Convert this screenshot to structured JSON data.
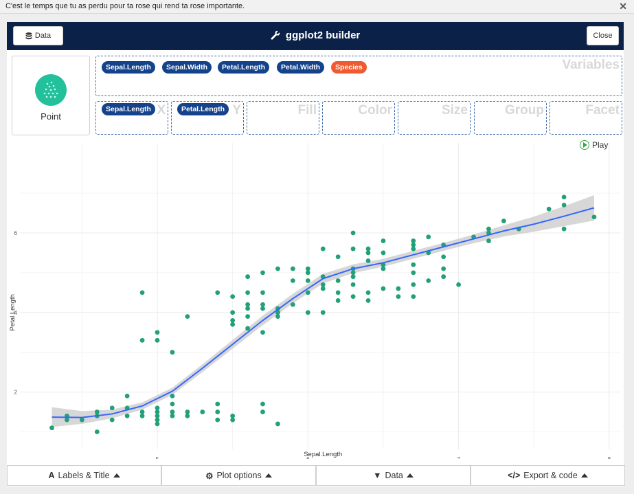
{
  "topbar": {
    "message": "C'est le temps que tu as perdu pour ta rose qui rend ta rose importante."
  },
  "header": {
    "data_button": "Data",
    "title": "ggplot2 builder",
    "close_button": "Close"
  },
  "geom": {
    "label": "Point",
    "icon": "scatter-plot-icon",
    "color": "#22c19b"
  },
  "variables": {
    "label": "Variables",
    "items": [
      {
        "name": "Sepal.Length",
        "type": "numeric"
      },
      {
        "name": "Sepal.Width",
        "type": "numeric"
      },
      {
        "name": "Petal.Length",
        "type": "numeric"
      },
      {
        "name": "Petal.Width",
        "type": "numeric"
      },
      {
        "name": "Species",
        "type": "factor"
      }
    ]
  },
  "zones": [
    {
      "label": "X",
      "value": "Sepal.Length"
    },
    {
      "label": "Y",
      "value": "Petal.Length"
    },
    {
      "label": "Fill",
      "value": ""
    },
    {
      "label": "Color",
      "value": ""
    },
    {
      "label": "Size",
      "value": ""
    },
    {
      "label": "Group",
      "value": ""
    },
    {
      "label": "Facet",
      "value": ""
    }
  ],
  "play": {
    "label": "Play"
  },
  "chart_data": {
    "type": "scatter",
    "xlabel": "Sepal.Length",
    "ylabel": "Petal.Length",
    "xlim": [
      4.25,
      8.0
    ],
    "ylim": [
      0.8,
      7.1
    ],
    "xticks": [
      5,
      6,
      7,
      8
    ],
    "yticks": [
      2,
      4,
      6
    ],
    "point_color": "#22a07a",
    "smooth_color": "#3366ff",
    "points": [
      [
        4.3,
        1.1
      ],
      [
        4.4,
        1.4
      ],
      [
        4.4,
        1.3
      ],
      [
        4.5,
        1.3
      ],
      [
        4.6,
        1.0
      ],
      [
        4.6,
        1.4
      ],
      [
        4.6,
        1.5
      ],
      [
        4.7,
        1.3
      ],
      [
        4.7,
        1.6
      ],
      [
        4.8,
        1.4
      ],
      [
        4.8,
        1.6
      ],
      [
        4.8,
        1.9
      ],
      [
        4.9,
        1.4
      ],
      [
        4.9,
        1.5
      ],
      [
        4.9,
        3.3
      ],
      [
        4.9,
        4.5
      ],
      [
        5.0,
        1.2
      ],
      [
        5.0,
        1.3
      ],
      [
        5.0,
        1.4
      ],
      [
        5.0,
        1.5
      ],
      [
        5.0,
        1.6
      ],
      [
        5.0,
        3.3
      ],
      [
        5.0,
        3.5
      ],
      [
        5.1,
        1.4
      ],
      [
        5.1,
        1.5
      ],
      [
        5.1,
        1.7
      ],
      [
        5.1,
        1.9
      ],
      [
        5.1,
        3.0
      ],
      [
        5.2,
        1.4
      ],
      [
        5.2,
        1.5
      ],
      [
        5.2,
        3.9
      ],
      [
        5.3,
        1.5
      ],
      [
        5.4,
        1.3
      ],
      [
        5.4,
        1.5
      ],
      [
        5.4,
        1.7
      ],
      [
        5.4,
        4.5
      ],
      [
        5.5,
        1.3
      ],
      [
        5.5,
        1.4
      ],
      [
        5.5,
        3.7
      ],
      [
        5.5,
        3.8
      ],
      [
        5.5,
        4.0
      ],
      [
        5.5,
        4.4
      ],
      [
        5.6,
        3.6
      ],
      [
        5.6,
        3.9
      ],
      [
        5.6,
        4.1
      ],
      [
        5.6,
        4.2
      ],
      [
        5.6,
        4.5
      ],
      [
        5.6,
        4.9
      ],
      [
        5.7,
        1.5
      ],
      [
        5.7,
        1.7
      ],
      [
        5.7,
        3.5
      ],
      [
        5.7,
        4.1
      ],
      [
        5.7,
        4.2
      ],
      [
        5.7,
        4.5
      ],
      [
        5.7,
        5.0
      ],
      [
        5.8,
        1.2
      ],
      [
        5.8,
        3.9
      ],
      [
        5.8,
        4.0
      ],
      [
        5.8,
        4.1
      ],
      [
        5.8,
        5.1
      ],
      [
        5.9,
        4.2
      ],
      [
        5.9,
        4.8
      ],
      [
        5.9,
        5.1
      ],
      [
        6.0,
        4.0
      ],
      [
        6.0,
        4.5
      ],
      [
        6.0,
        4.8
      ],
      [
        6.0,
        5.0
      ],
      [
        6.0,
        5.1
      ],
      [
        6.1,
        4.0
      ],
      [
        6.1,
        4.6
      ],
      [
        6.1,
        4.7
      ],
      [
        6.1,
        4.9
      ],
      [
        6.1,
        5.6
      ],
      [
        6.2,
        4.3
      ],
      [
        6.2,
        4.5
      ],
      [
        6.2,
        4.8
      ],
      [
        6.2,
        5.4
      ],
      [
        6.3,
        4.4
      ],
      [
        6.3,
        4.7
      ],
      [
        6.3,
        4.9
      ],
      [
        6.3,
        5.0
      ],
      [
        6.3,
        5.1
      ],
      [
        6.3,
        5.6
      ],
      [
        6.3,
        6.0
      ],
      [
        6.4,
        4.3
      ],
      [
        6.4,
        4.5
      ],
      [
        6.4,
        5.3
      ],
      [
        6.4,
        5.5
      ],
      [
        6.4,
        5.6
      ],
      [
        6.5,
        4.6
      ],
      [
        6.5,
        5.1
      ],
      [
        6.5,
        5.2
      ],
      [
        6.5,
        5.5
      ],
      [
        6.5,
        5.8
      ],
      [
        6.6,
        4.4
      ],
      [
        6.6,
        4.6
      ],
      [
        6.7,
        4.4
      ],
      [
        6.7,
        4.7
      ],
      [
        6.7,
        5.0
      ],
      [
        6.7,
        5.2
      ],
      [
        6.7,
        5.6
      ],
      [
        6.7,
        5.7
      ],
      [
        6.7,
        5.8
      ],
      [
        6.8,
        4.8
      ],
      [
        6.8,
        5.5
      ],
      [
        6.8,
        5.9
      ],
      [
        6.9,
        4.9
      ],
      [
        6.9,
        5.1
      ],
      [
        6.9,
        5.4
      ],
      [
        6.9,
        5.7
      ],
      [
        7.0,
        4.7
      ],
      [
        7.1,
        5.9
      ],
      [
        7.2,
        5.8
      ],
      [
        7.2,
        6.0
      ],
      [
        7.2,
        6.1
      ],
      [
        7.3,
        6.3
      ],
      [
        7.4,
        6.1
      ],
      [
        7.6,
        6.6
      ],
      [
        7.7,
        6.1
      ],
      [
        7.7,
        6.7
      ],
      [
        7.7,
        6.9
      ],
      [
        7.9,
        6.4
      ]
    ],
    "smooth": [
      [
        4.3,
        1.37
      ],
      [
        4.5,
        1.36
      ],
      [
        4.7,
        1.45
      ],
      [
        4.9,
        1.65
      ],
      [
        5.1,
        2.02
      ],
      [
        5.3,
        2.6
      ],
      [
        5.5,
        3.2
      ],
      [
        5.7,
        3.8
      ],
      [
        5.9,
        4.35
      ],
      [
        6.1,
        4.85
      ],
      [
        6.3,
        5.1
      ],
      [
        6.5,
        5.25
      ],
      [
        6.7,
        5.45
      ],
      [
        6.9,
        5.65
      ],
      [
        7.1,
        5.85
      ],
      [
        7.3,
        6.05
      ],
      [
        7.5,
        6.22
      ],
      [
        7.7,
        6.42
      ],
      [
        7.9,
        6.63
      ]
    ],
    "band_halfwidth": [
      0.25,
      0.16,
      0.11,
      0.09,
      0.09,
      0.1,
      0.11,
      0.12,
      0.12,
      0.12,
      0.11,
      0.1,
      0.1,
      0.1,
      0.11,
      0.14,
      0.19,
      0.25,
      0.32
    ]
  },
  "tabs": [
    {
      "icon": "A",
      "name": "font-icon",
      "label": "Labels & Title"
    },
    {
      "icon": "⚙",
      "name": "cogs-icon",
      "label": "Plot options"
    },
    {
      "icon": "▼",
      "name": "filter-icon",
      "label": "Data"
    },
    {
      "icon": "</>",
      "name": "code-icon",
      "label": "Export & code"
    }
  ]
}
